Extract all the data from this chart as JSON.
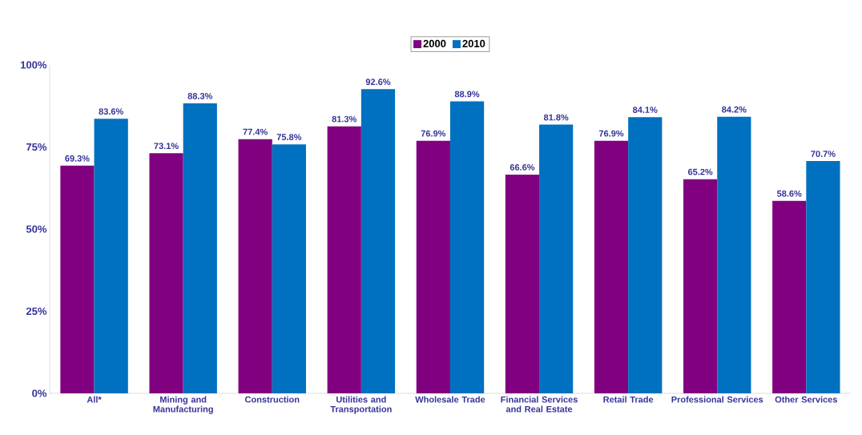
{
  "chart_data": {
    "type": "bar",
    "categories": [
      "All*",
      "Mining and Manufacturing",
      "Construction",
      "Utilities and Transportation",
      "Wholesale Trade",
      "Financial Services and Real Estate",
      "Retail Trade",
      "Professional Services",
      "Other Services"
    ],
    "series": [
      {
        "name": "2000",
        "color": "#800080",
        "values": [
          69.3,
          73.1,
          77.4,
          81.3,
          76.9,
          66.6,
          76.9,
          65.2,
          58.6
        ],
        "value_labels": [
          "69.3%",
          "73.1%",
          "77.4%",
          "81.3%",
          "76.9%",
          "66.6%",
          "76.9%",
          "65.2%",
          "58.6%"
        ]
      },
      {
        "name": "2010",
        "color": "#0070c0",
        "values": [
          83.6,
          88.3,
          75.8,
          92.6,
          88.9,
          81.8,
          84.1,
          84.2,
          70.7
        ],
        "value_labels": [
          "83.6%",
          "88.3%",
          "75.8%",
          "92.6%",
          "88.9%",
          "81.8%",
          "84.1%",
          "84.2%",
          "70.7%"
        ]
      }
    ],
    "ylim": [
      0,
      100
    ],
    "yticks": [
      {
        "value": 0,
        "label": "0%"
      },
      {
        "value": 25,
        "label": "25%"
      },
      {
        "value": 50,
        "label": "50%"
      },
      {
        "value": 75,
        "label": "75%"
      },
      {
        "value": 100,
        "label": "100%"
      }
    ],
    "legend": "top",
    "grid": false
  }
}
